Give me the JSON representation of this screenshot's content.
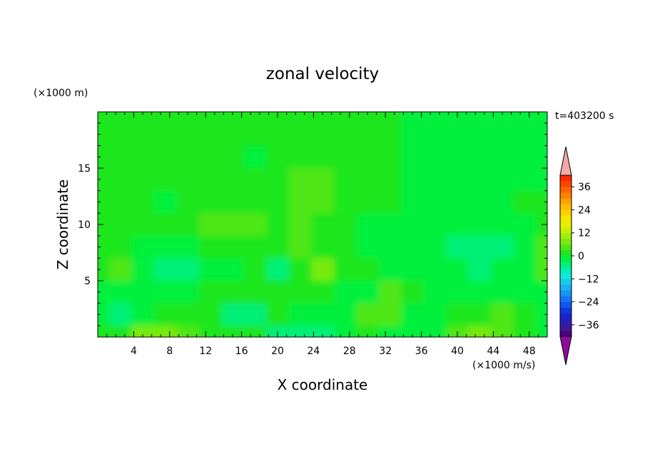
{
  "chart_data": {
    "type": "heatmap",
    "title": "zonal velocity",
    "xlabel": "X coordinate",
    "ylabel": "Z coordinate",
    "x_unit_label": "(×1000 m/s)",
    "y_unit_label": "(×1000 m)",
    "time_label": "t=403200 s",
    "xlim": [
      0,
      50
    ],
    "ylim": [
      0,
      20
    ],
    "x_ticks": [
      "4",
      "8",
      "12",
      "16",
      "20",
      "24",
      "28",
      "32",
      "36",
      "40",
      "44",
      "48"
    ],
    "y_ticks": [
      "5",
      "10",
      "15"
    ],
    "colorbar": {
      "tick_labels": [
        "36",
        "24",
        "12",
        "0",
        "−12",
        "−24",
        "−36"
      ],
      "min": -42,
      "max": 42,
      "level_step": 3,
      "extend": "both",
      "colors_low_to_high": [
        "#4b0082",
        "#3c1a96",
        "#2a1fb4",
        "#1a23cc",
        "#1037e0",
        "#0f56f0",
        "#1476f5",
        "#1894f2",
        "#1cb0f0",
        "#18cce8",
        "#10e8dc",
        "#00f0b4",
        "#00f078",
        "#00f03c",
        "#1ee61e",
        "#50e614",
        "#78ea0f",
        "#a0ee0a",
        "#c8f005",
        "#e6f000",
        "#f5e600",
        "#ffd200",
        "#ffbe00",
        "#ffa000",
        "#ff8200",
        "#ff6400",
        "#ff4600",
        "#ff2800"
      ],
      "under_color": "#8e0c9e",
      "over_color": "#f5a8a8"
    },
    "field_grid": {
      "x_values": [
        0,
        2.5,
        5,
        7.5,
        10,
        12.5,
        15,
        17.5,
        20,
        22.5,
        25,
        27.5,
        30,
        32.5,
        35,
        37.5,
        40,
        42.5,
        45,
        47.5,
        50
      ],
      "z_values": [
        20,
        18,
        16,
        14,
        12,
        10,
        8,
        6,
        4,
        2,
        0
      ],
      "values": [
        [
          1,
          1,
          1,
          1,
          1,
          1,
          1,
          1,
          1,
          1,
          1,
          1,
          1,
          1,
          -1,
          -1,
          -1,
          -1,
          -1,
          -1,
          -1
        ],
        [
          1,
          1,
          1,
          1,
          1,
          1,
          1,
          1,
          1,
          1,
          1,
          1,
          1,
          1,
          -1,
          -1,
          -1,
          -1,
          -1,
          -1,
          -1
        ],
        [
          1,
          1,
          1,
          1,
          1,
          1,
          1,
          -1,
          1,
          1,
          1,
          1,
          1,
          1,
          -1,
          -1,
          -1,
          -1,
          -1,
          -1,
          -1
        ],
        [
          1,
          1,
          1,
          1,
          1,
          1,
          1,
          1,
          1,
          4,
          4,
          1,
          1,
          1,
          -1,
          -1,
          -1,
          -1,
          -1,
          -1,
          -1
        ],
        [
          1,
          1,
          1,
          -1,
          1,
          1,
          1,
          1,
          1,
          5,
          5,
          1,
          1,
          1,
          -1,
          -1,
          -1,
          -1,
          -1,
          1,
          1
        ],
        [
          1,
          1,
          1,
          1,
          1,
          3,
          3,
          3,
          1,
          4,
          1,
          1,
          -1,
          -1,
          -1,
          -1,
          -1,
          -1,
          -1,
          -1,
          1
        ],
        [
          1,
          1,
          -1,
          -1,
          -1,
          1,
          1,
          1,
          1,
          4,
          1,
          1,
          -1,
          -1,
          -1,
          -1,
          -4,
          -5,
          -4,
          -1,
          3
        ],
        [
          1,
          3,
          -1,
          -4,
          -4,
          -1,
          -1,
          1,
          -4,
          1,
          6,
          1,
          1,
          -1,
          -1,
          -1,
          -1,
          -4,
          -1,
          -1,
          3
        ],
        [
          -1,
          -1,
          -1,
          -1,
          -1,
          1,
          1,
          1,
          1,
          1,
          1,
          -1,
          -1,
          4,
          1,
          -1,
          -1,
          -1,
          -1,
          -1,
          -1
        ],
        [
          -1,
          -4,
          -1,
          1,
          1,
          1,
          -4,
          -4,
          1,
          -1,
          -1,
          -1,
          4,
          4,
          -1,
          -1,
          1,
          1,
          3,
          1,
          -1
        ],
        [
          1,
          1,
          6,
          6,
          3,
          1,
          1,
          1,
          -4,
          -6,
          -4,
          -1,
          1,
          -1,
          -1,
          -1,
          3,
          6,
          3,
          1,
          -1
        ]
      ]
    }
  }
}
